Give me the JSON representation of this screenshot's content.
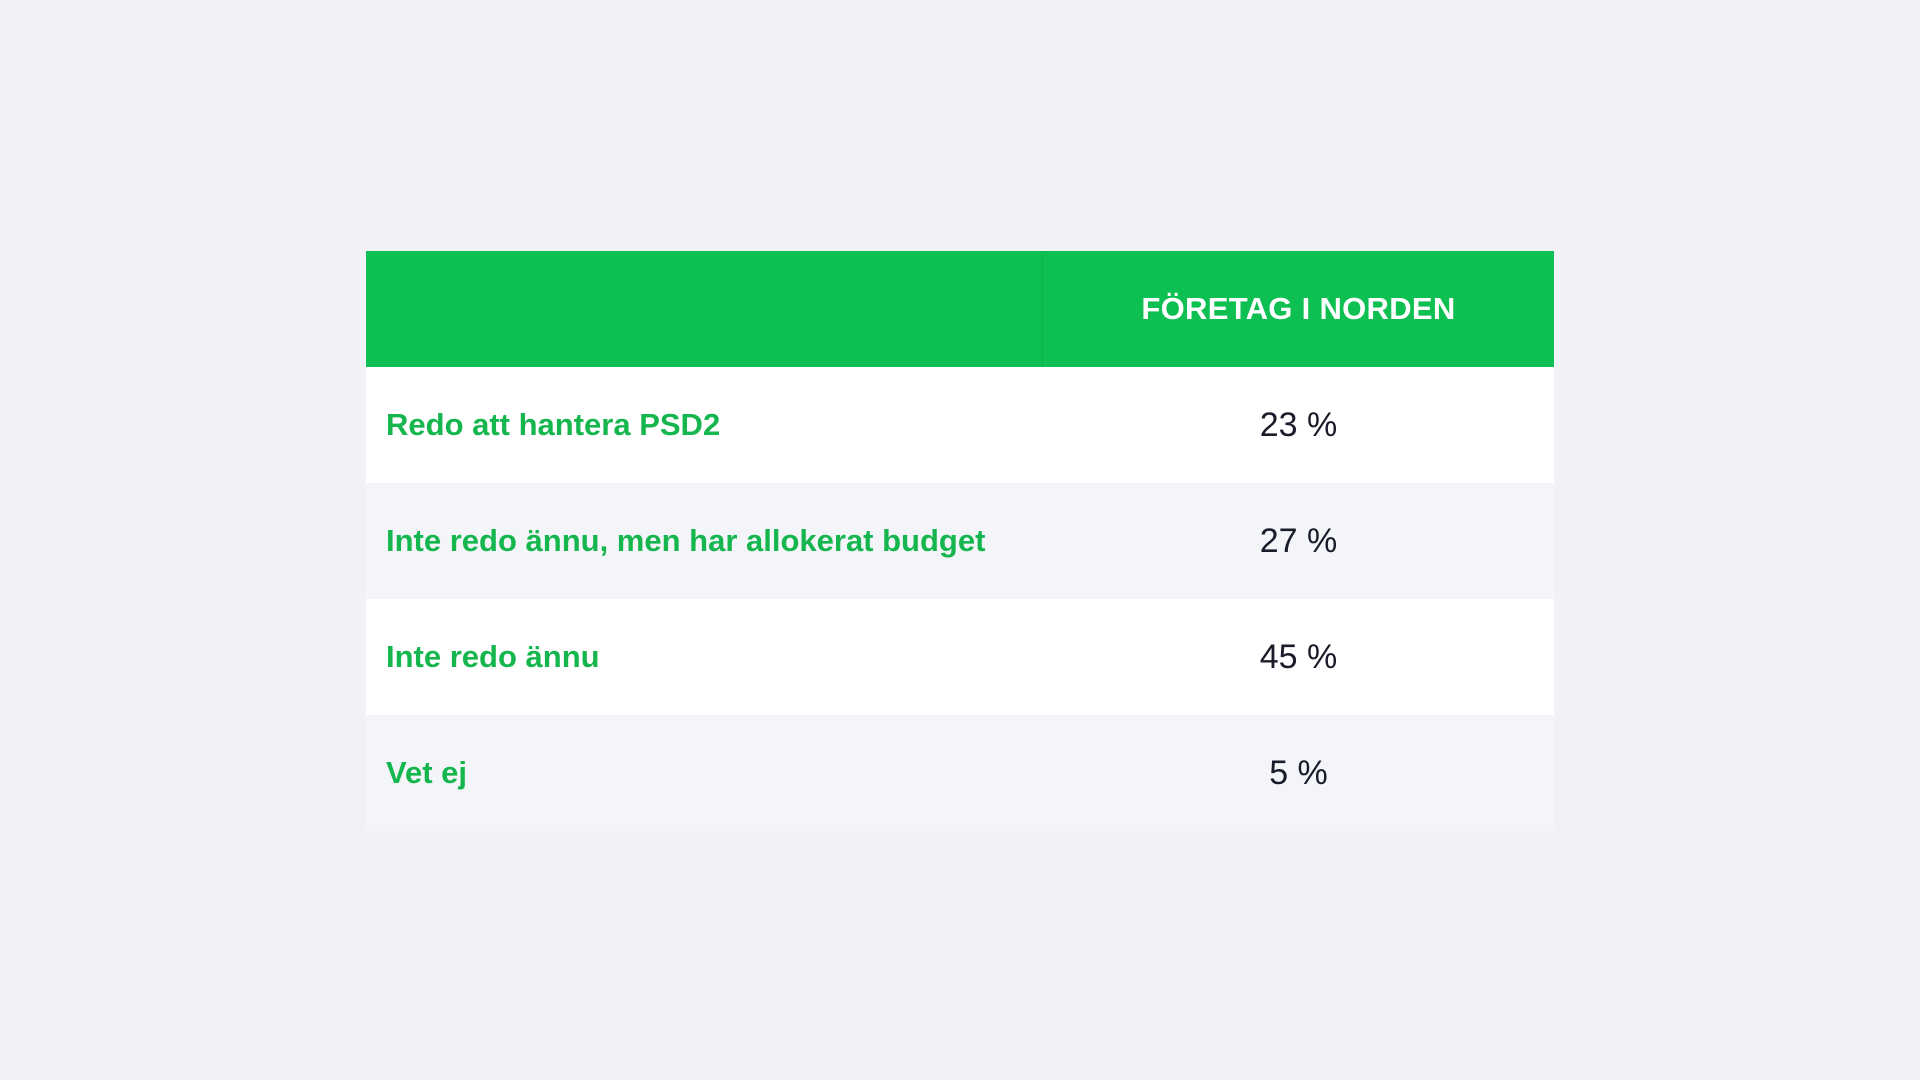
{
  "colors": {
    "header_bg": "#0ec052",
    "label_text": "#16b64f",
    "value_text": "#1a1c2b",
    "row_odd": "#ffffff",
    "row_even": "#f4f5f9",
    "page_bg": "#f0f2f6"
  },
  "table": {
    "header": {
      "label": "",
      "value": "FÖRETAG I NORDEN"
    },
    "rows": [
      {
        "label": "Redo att hantera PSD2",
        "value": "23 %"
      },
      {
        "label": "Inte redo ännu, men har allokerat budget",
        "value": "27 %"
      },
      {
        "label": "Inte redo ännu",
        "value": "45 %"
      },
      {
        "label": "Vet ej",
        "value": "5 %"
      }
    ]
  }
}
